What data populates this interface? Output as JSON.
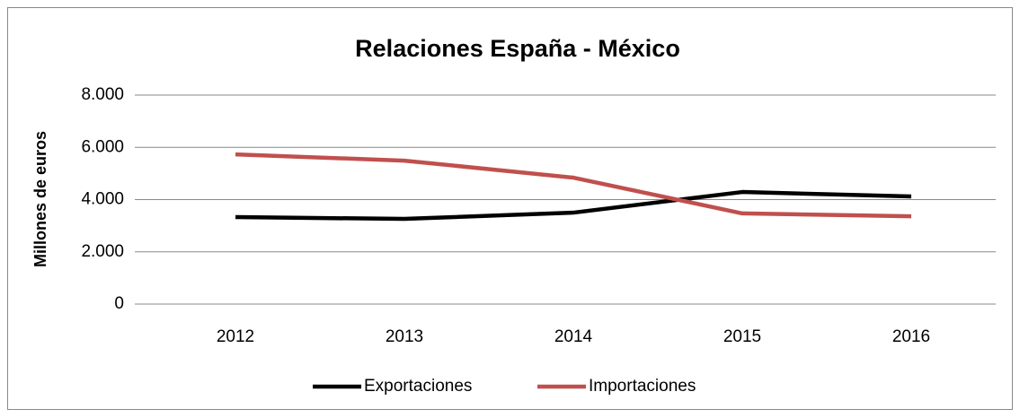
{
  "chart_data": {
    "type": "line",
    "title": "Relaciones España - México",
    "y_label": "Millones de euros",
    "categories": [
      "2012",
      "2013",
      "2014",
      "2015",
      "2016"
    ],
    "series": [
      {
        "name": "Exportaciones",
        "color": "#000000",
        "values": [
          3330,
          3260,
          3500,
          4290,
          4120
        ]
      },
      {
        "name": "Importaciones",
        "color": "#c0504d",
        "values": [
          5730,
          5490,
          4840,
          3470,
          3360
        ]
      }
    ],
    "ylim": [
      0,
      8000
    ],
    "yticks": [
      0,
      {
        "value": 2000,
        "label": "2.000"
      },
      {
        "value": 4000,
        "label": "4.000"
      },
      {
        "value": 6000,
        "label": "6.000"
      },
      {
        "value": 8000,
        "label": "8.000"
      }
    ],
    "grid": true,
    "legend": "bottom"
  }
}
